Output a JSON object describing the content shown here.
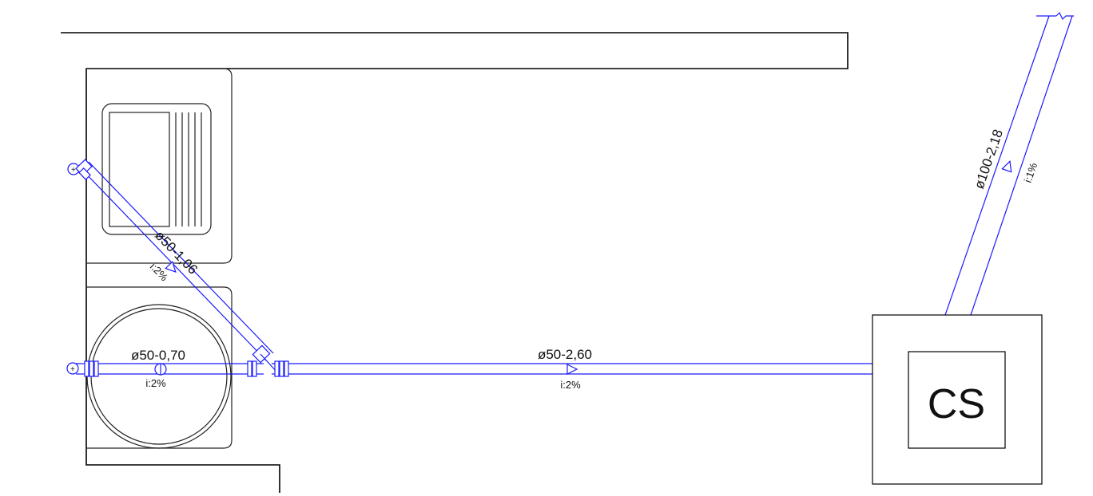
{
  "accent_color": "#1a1aff",
  "pipes": [
    {
      "diameter_label": "ø50-0,70",
      "slope_label": "i:2%"
    },
    {
      "diameter_label": "ø50-1,06",
      "slope_label": "i:2%"
    },
    {
      "diameter_label": "ø50-2,60",
      "slope_label": "i:2%"
    },
    {
      "diameter_label": "ø100-2,18",
      "slope_label": "i:1%"
    }
  ],
  "chamber": {
    "label": "CS"
  }
}
